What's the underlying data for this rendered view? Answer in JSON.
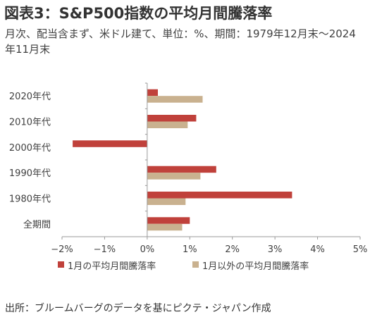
{
  "header": {
    "title": "図表3：S&P500指数の平均月間騰落率",
    "subtitle": "月次、配当含まず、米ドル建て、単位：%、期間：1979年12月末～2024年11月末"
  },
  "footer": {
    "source": "出所：ブルームバーグのデータを基にピクテ・ジャパン作成"
  },
  "colors": {
    "january": "#c0413b",
    "other_months": "#c9b18f"
  },
  "chart_data": {
    "type": "bar",
    "orientation": "horizontal",
    "title": "",
    "xlabel": "",
    "ylabel": "",
    "categories": [
      "2020年代",
      "2010年代",
      "2000年代",
      "1990年代",
      "1980年代",
      "全期間"
    ],
    "series": [
      {
        "name": "1月の平均月間騰落率",
        "values": [
          0.25,
          1.15,
          -1.75,
          1.62,
          3.4,
          1.0
        ]
      },
      {
        "name": "1月以外の平均月間騰落率",
        "values": [
          1.3,
          0.95,
          0.0,
          1.25,
          0.9,
          0.82
        ]
      }
    ],
    "xlim": [
      -2,
      5
    ],
    "xticks": [
      -2,
      -1,
      0,
      1,
      2,
      3,
      4,
      5
    ],
    "xtick_labels": [
      "−2%",
      "−1%",
      "0%",
      "1%",
      "2%",
      "3%",
      "4%",
      "5%"
    ],
    "grid": false,
    "legend_position": "bottom"
  }
}
